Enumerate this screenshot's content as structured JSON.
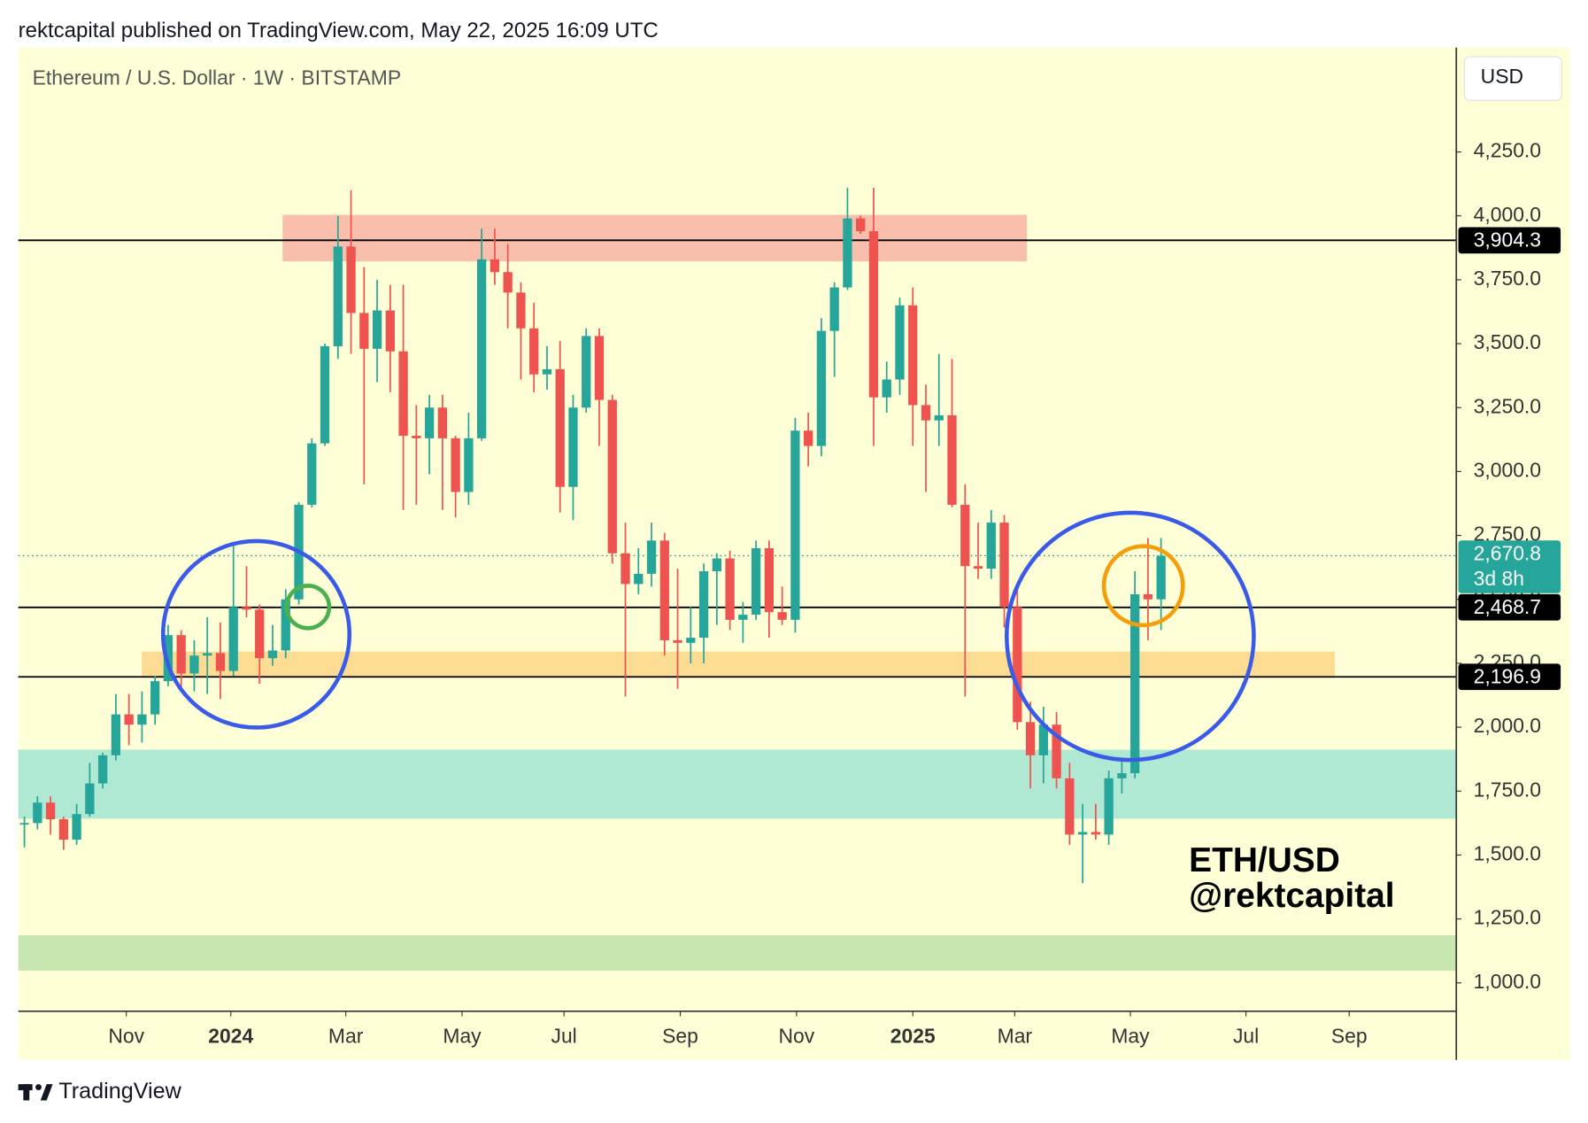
{
  "header": "rektcapital published on TradingView.com, May 22, 2025 16:09 UTC",
  "footer": "TradingView",
  "chart_data": {
    "type": "candlestick",
    "title": "Ethereum / U.S. Dollar · 1W · BITSTAMP",
    "currency": "USD",
    "watermark": [
      "ETH/USD",
      "@rektcapital"
    ],
    "up_color": "#26a69a",
    "down_color": "#ef5350",
    "open": [
      1620,
      1625,
      1705,
      1640,
      1560,
      1660,
      1780,
      1890,
      2050,
      2010,
      2050,
      2180,
      2360,
      2210,
      2280,
      2290,
      2220,
      2470,
      2460,
      2270,
      2300,
      2500,
      2870,
      3110,
      3490,
      3880,
      3620,
      3480,
      3630,
      3470,
      3140,
      3130,
      3250,
      3130,
      2920,
      3130,
      3830,
      3780,
      3700,
      3560,
      3380,
      3400,
      2940,
      3250,
      3530,
      3280,
      2680,
      2560,
      2600,
      2730,
      2340,
      2330,
      2350,
      2610,
      2660,
      2420,
      2440,
      2700,
      2450,
      2420,
      3160,
      3100,
      3550,
      3720,
      3990,
      3940,
      3290,
      3360,
      3650,
      3260,
      3200,
      3220,
      2870,
      2630,
      2620,
      2800,
      2470,
      2020,
      1890,
      2010,
      1800,
      1580,
      1590,
      1580,
      1800,
      1820,
      2520,
      2500
    ],
    "high": [
      1650,
      1730,
      1730,
      1650,
      1700,
      1860,
      1900,
      2130,
      2130,
      2140,
      2200,
      2400,
      2380,
      2340,
      2430,
      2410,
      2720,
      2630,
      2480,
      2400,
      2540,
      2880,
      3130,
      3500,
      4000,
      4100,
      3800,
      3750,
      3730,
      3730,
      3260,
      3300,
      3300,
      3140,
      3230,
      3950,
      3950,
      3890,
      3740,
      3660,
      3490,
      3510,
      3300,
      3560,
      3560,
      3300,
      2800,
      2700,
      2800,
      2760,
      2620,
      2470,
      2640,
      2680,
      2690,
      2490,
      2730,
      2730,
      2550,
      3210,
      3230,
      3600,
      3740,
      4110,
      4000,
      4110,
      3430,
      3680,
      3720,
      3340,
      3460,
      3440,
      2950,
      2800,
      2850,
      2830,
      2550,
      2100,
      2080,
      2060,
      1860,
      1700,
      1700,
      1830,
      1870,
      2610,
      2740,
      2740
    ],
    "low": [
      1530,
      1600,
      1580,
      1520,
      1540,
      1650,
      1760,
      1870,
      1930,
      1940,
      2010,
      2160,
      2150,
      2140,
      2130,
      2110,
      2200,
      2430,
      2170,
      2240,
      2270,
      2480,
      2860,
      3100,
      3440,
      3460,
      2950,
      3350,
      3310,
      2850,
      2870,
      2990,
      2850,
      2820,
      2870,
      3120,
      3730,
      3560,
      3360,
      3310,
      3320,
      2840,
      2810,
      3230,
      3100,
      2640,
      2120,
      2520,
      2550,
      2280,
      2150,
      2250,
      2250,
      2400,
      2380,
      2330,
      2420,
      2350,
      2400,
      2370,
      3020,
      3060,
      3370,
      3710,
      3930,
      3100,
      3230,
      3300,
      3100,
      2920,
      3100,
      2860,
      2120,
      2580,
      2580,
      2390,
      1990,
      1760,
      1780,
      1760,
      1540,
      1390,
      1560,
      1540,
      1740,
      1800,
      2340,
      2380
    ],
    "close": [
      1625,
      1705,
      1640,
      1560,
      1660,
      1780,
      1890,
      2050,
      2010,
      2050,
      2180,
      2360,
      2210,
      2280,
      2290,
      2220,
      2470,
      2460,
      2270,
      2300,
      2500,
      2870,
      3110,
      3490,
      3880,
      3620,
      3480,
      3630,
      3470,
      3140,
      3130,
      3250,
      3130,
      2920,
      3130,
      3830,
      3780,
      3700,
      3560,
      3380,
      3400,
      2940,
      3250,
      3530,
      3280,
      2680,
      2560,
      2600,
      2730,
      2340,
      2330,
      2350,
      2610,
      2660,
      2420,
      2440,
      2700,
      2450,
      2420,
      3160,
      3100,
      3550,
      3720,
      3990,
      3940,
      3290,
      3360,
      3650,
      3260,
      3200,
      3220,
      2870,
      2630,
      2620,
      2800,
      2470,
      2020,
      1890,
      2010,
      1800,
      1580,
      1590,
      1580,
      1800,
      1820,
      2520,
      2500,
      2670
    ],
    "xlim": [
      -0.47,
      109.6
    ],
    "xticks": [
      {
        "value": 7.8,
        "label": "Nov"
      },
      {
        "value": 15.8,
        "label": "2024"
      },
      {
        "value": 24.6,
        "label": "Mar"
      },
      {
        "value": 33.5,
        "label": "May"
      },
      {
        "value": 41.3,
        "label": "Jul"
      },
      {
        "value": 50.2,
        "label": "Sep"
      },
      {
        "value": 59.1,
        "label": "Nov"
      },
      {
        "value": 68,
        "label": "2025"
      },
      {
        "value": 75.8,
        "label": "Mar"
      },
      {
        "value": 84.65,
        "label": "May"
      },
      {
        "value": 93.5,
        "label": "Jul"
      },
      {
        "value": 101.4,
        "label": "Sep"
      }
    ],
    "bold_xticks": [
      "2024",
      "2025"
    ],
    "ylim": [
      889,
      4658
    ],
    "yticks": [
      {
        "value": 1000,
        "label": "1,000.0"
      },
      {
        "value": 1250,
        "label": "1,250.0"
      },
      {
        "value": 1500,
        "label": "1,500.0"
      },
      {
        "value": 1750,
        "label": "1,750.0"
      },
      {
        "value": 2000,
        "label": "2,000.0"
      },
      {
        "value": 2250,
        "label": "2,250.0"
      },
      {
        "value": 2500,
        "label": "2,500.0"
      },
      {
        "value": 2750,
        "label": "2,750.0"
      },
      {
        "value": 3000,
        "label": "3,000.0"
      },
      {
        "value": 3250,
        "label": "3,250.0"
      },
      {
        "value": 3500,
        "label": "3,500.0"
      },
      {
        "value": 3750,
        "label": "3,750.0"
      },
      {
        "value": 4000,
        "label": "4,000.0"
      },
      {
        "value": 4250,
        "label": "4,250.0"
      }
    ],
    "levels": [
      {
        "value": 3904.3,
        "label": "3,904.3"
      },
      {
        "value": 2468.7,
        "label": "2,468.7"
      },
      {
        "value": 2196.9,
        "label": "2,196.9"
      }
    ],
    "last_price": {
      "value": 2670.8,
      "label": "2,670.8",
      "countdown": "3d 8h"
    },
    "zones": [
      {
        "low": 3822,
        "high": 4004,
        "color": "#f9bfac"
      },
      {
        "low": 2193,
        "high": 2296,
        "color": "#fcdb93"
      },
      {
        "low": 1642,
        "high": 1912,
        "color": "#b0e9d3"
      },
      {
        "low": 1048,
        "high": 1186,
        "color": "#c8e6b0"
      }
    ]
  }
}
